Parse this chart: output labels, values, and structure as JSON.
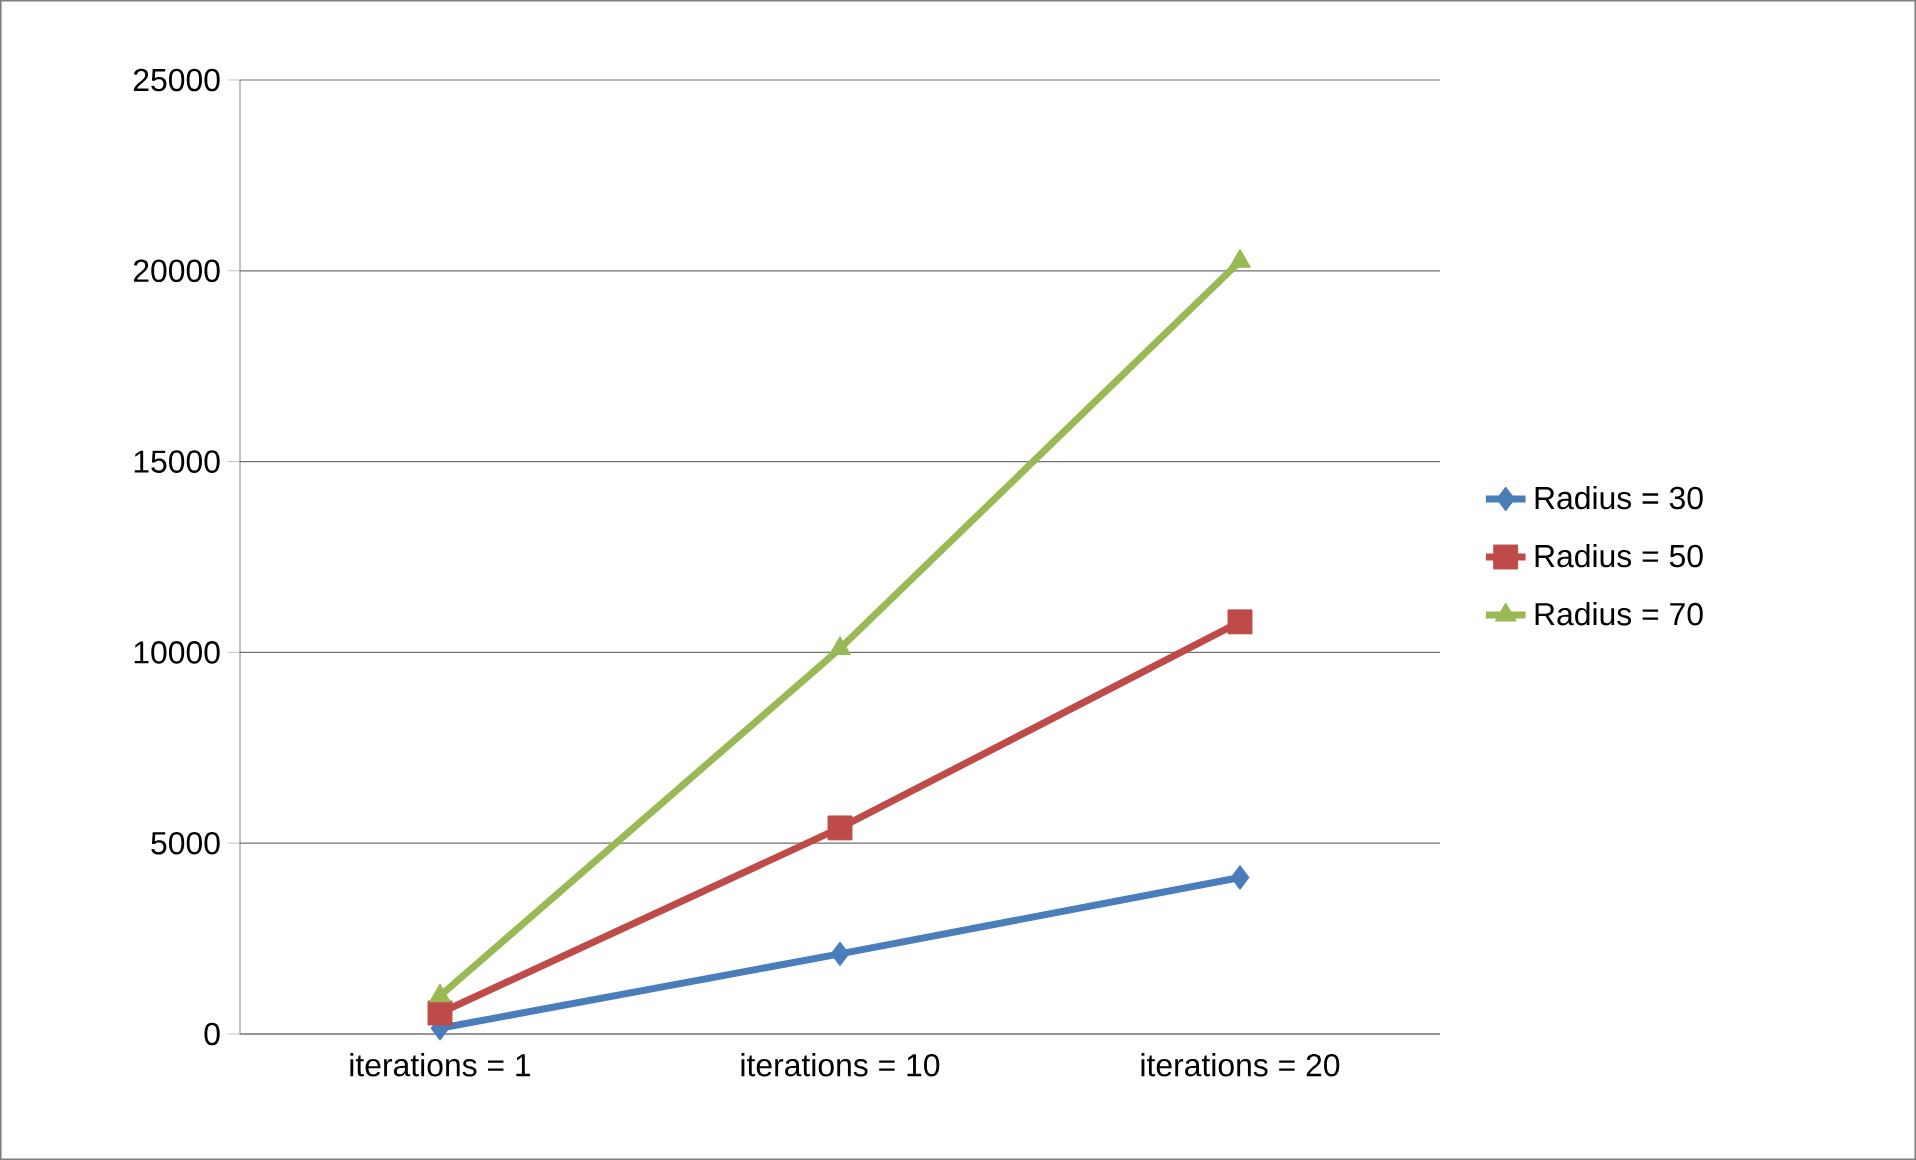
{
  "chart_data": {
    "type": "line",
    "categories": [
      "iterations = 1",
      "iterations = 10",
      "iterations = 20"
    ],
    "series": [
      {
        "name": "Radius = 30",
        "color": "#4a7ebb",
        "marker": "diamond",
        "values": [
          150,
          2100,
          4100
        ]
      },
      {
        "name": "Radius = 50",
        "color": "#be4b48",
        "marker": "square",
        "values": [
          550,
          5400,
          10800
        ]
      },
      {
        "name": "Radius = 70",
        "color": "#98b954",
        "marker": "triangle",
        "values": [
          1000,
          10100,
          20250
        ]
      }
    ],
    "ylim": [
      0,
      25000
    ],
    "yticks": [
      0,
      5000,
      10000,
      15000,
      20000,
      25000
    ],
    "grid": "y",
    "legend": "right",
    "line_style": "solid"
  }
}
